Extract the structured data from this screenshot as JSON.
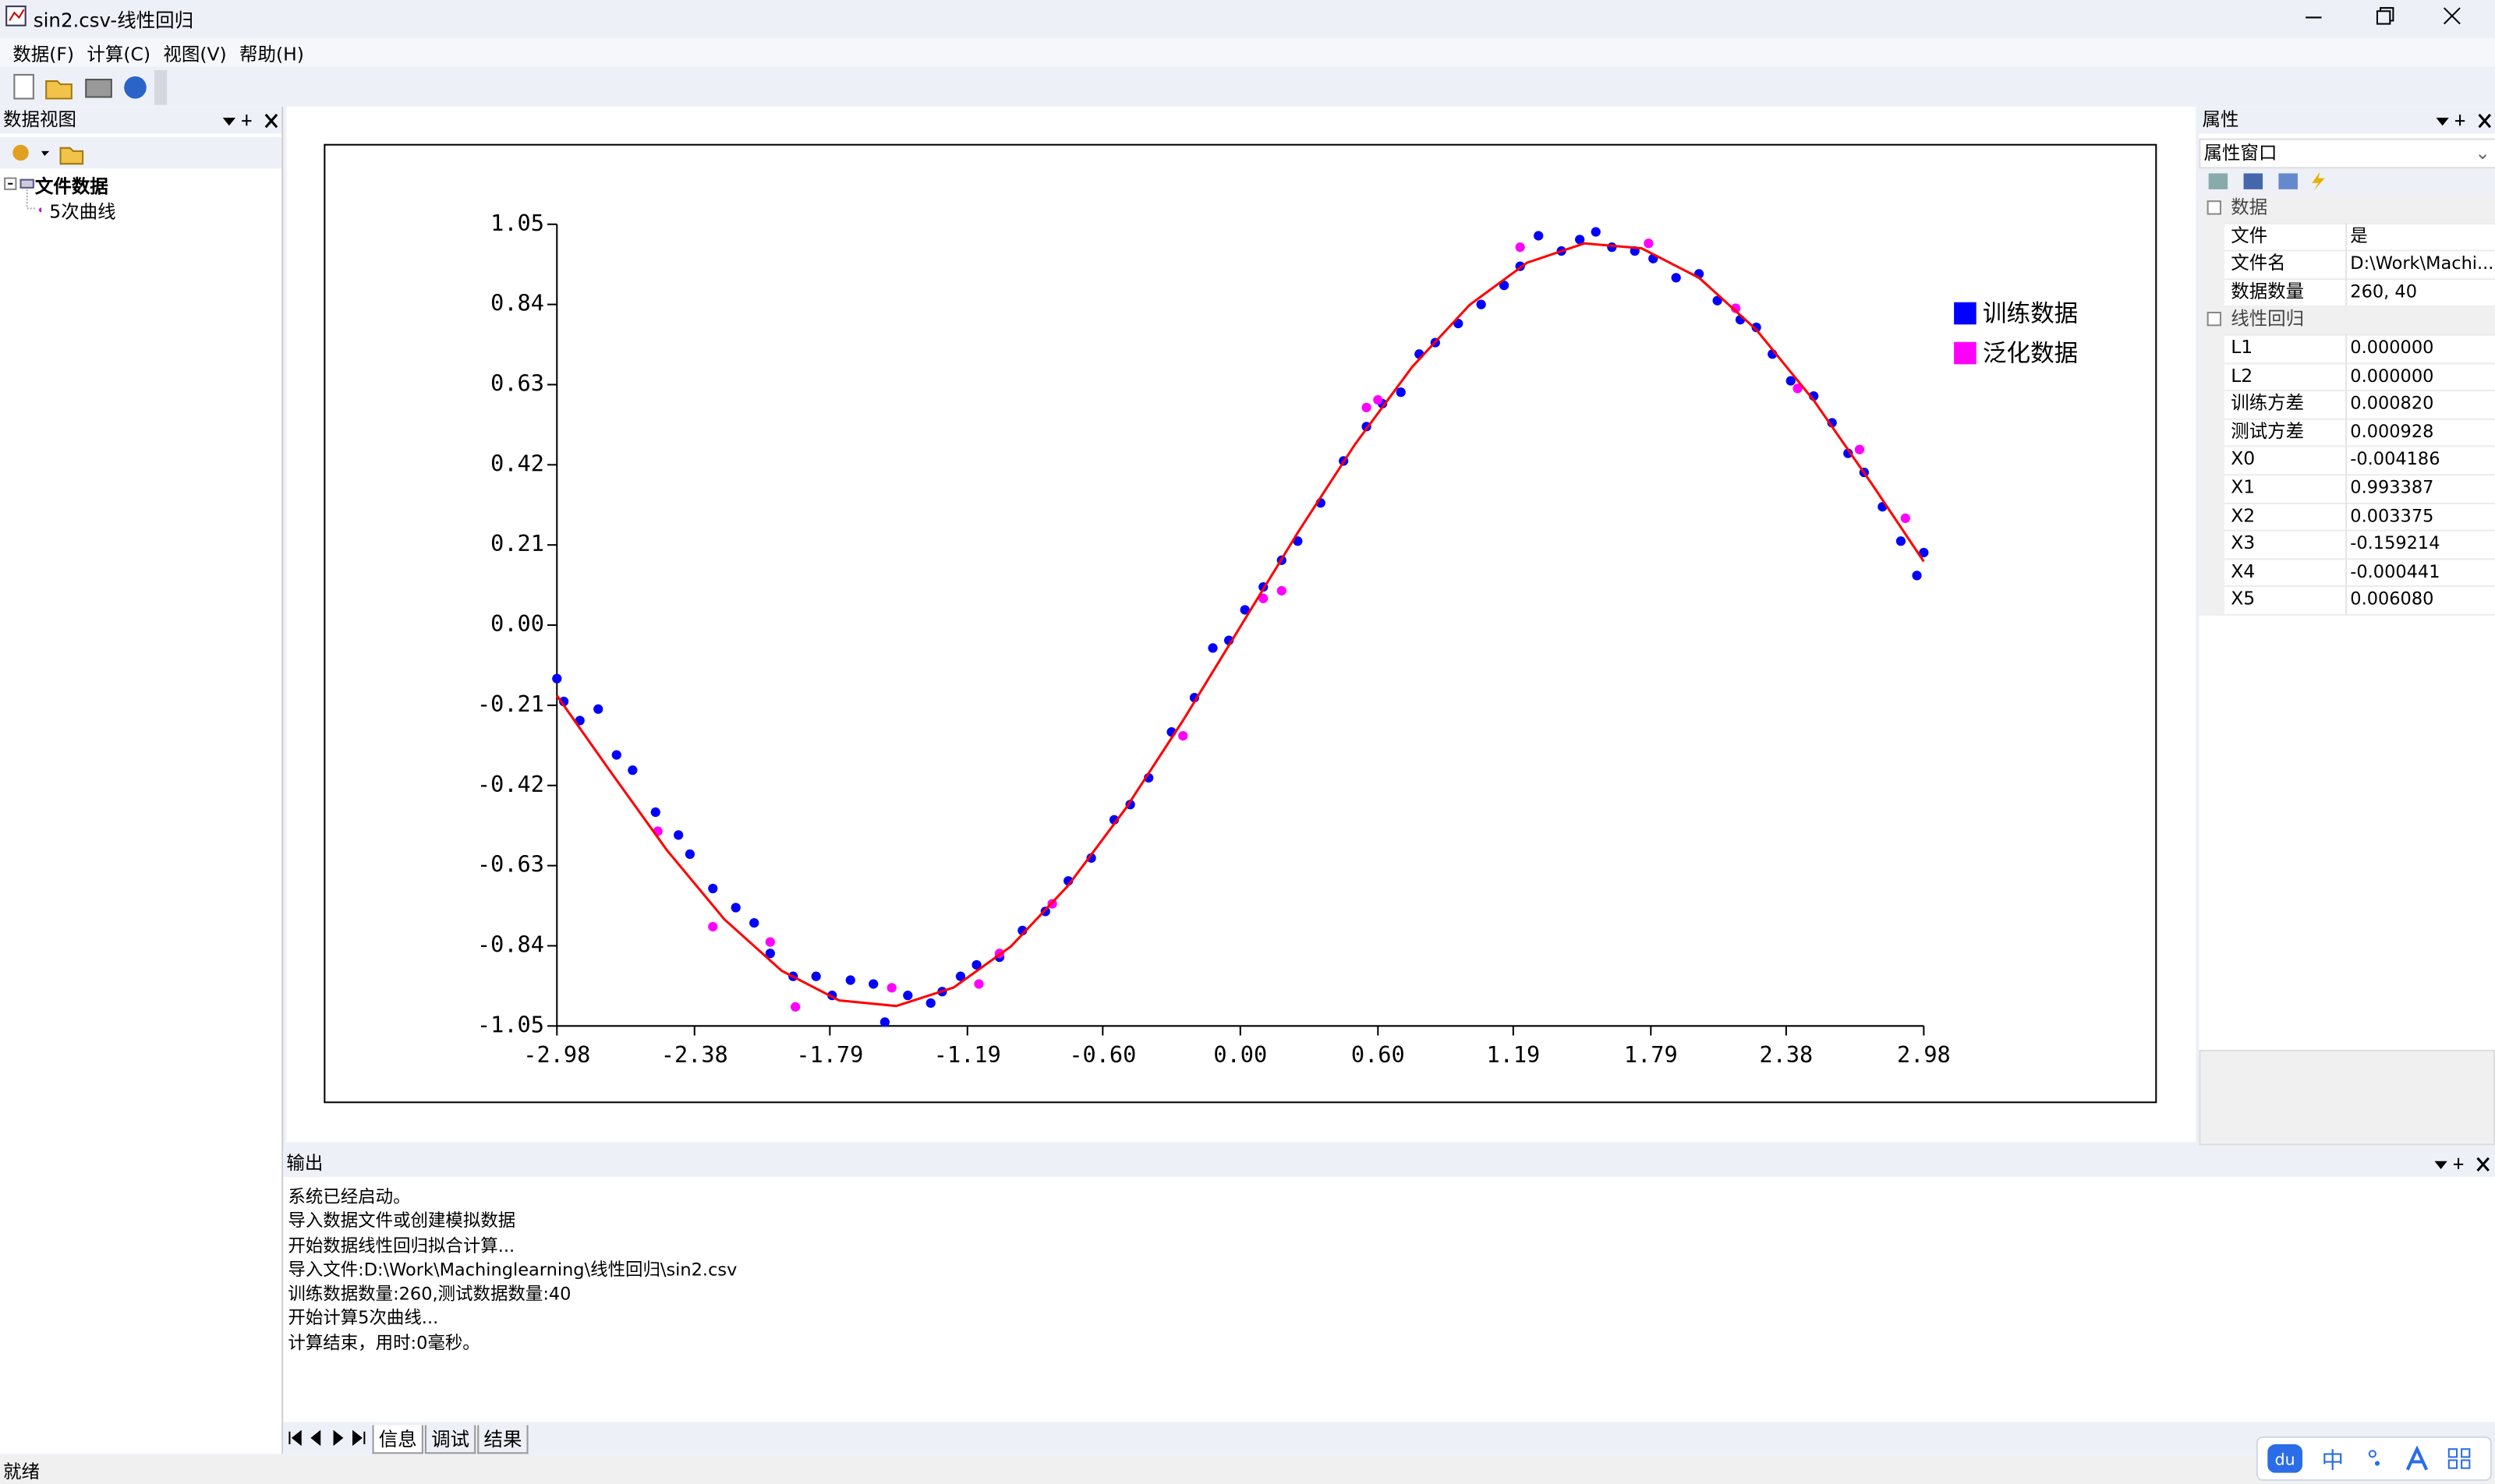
{
  "window": {
    "title": "sin2.csv-线性回归"
  },
  "menu": [
    "数据(F)",
    "计算(C)",
    "视图(V)",
    "帮助(H)"
  ],
  "data_view": {
    "header": "数据视图",
    "tree": {
      "root": "文件数据",
      "children": [
        "5次曲线"
      ]
    }
  },
  "properties": {
    "header": "属性",
    "selector": "属性窗口",
    "groups": [
      {
        "name": "数据",
        "rows": [
          [
            "文件",
            "是"
          ],
          [
            "文件名",
            "D:\\Work\\Machi..."
          ],
          [
            "数据数量",
            "260, 40"
          ]
        ]
      },
      {
        "name": "线性回归",
        "rows": [
          [
            "L1",
            "0.000000"
          ],
          [
            "L2",
            "0.000000"
          ],
          [
            "训练方差",
            "0.000820"
          ],
          [
            "测试方差",
            "0.000928"
          ],
          [
            "X0",
            "-0.004186"
          ],
          [
            "X1",
            "0.993387"
          ],
          [
            "X2",
            "0.003375"
          ],
          [
            "X3",
            "-0.159214"
          ],
          [
            "X4",
            "-0.000441"
          ],
          [
            "X5",
            "0.006080"
          ]
        ]
      }
    ]
  },
  "output": {
    "header": "输出",
    "lines": [
      "系统已经启动。",
      "导入数据文件或创建模拟数据",
      "开始数据线性回归拟合计算...",
      "导入文件:D:\\Work\\Machinglearning\\线性回归\\sin2.csv",
      "训练数据数量:260,测试数据数量:40",
      "开始计算5次曲线...",
      "计算结束，用时:0毫秒。"
    ],
    "tabs": [
      "信息",
      "调试",
      "结果"
    ]
  },
  "status": "就绪",
  "ime": "中",
  "chart_data": {
    "type": "scatter",
    "legend": "upper right",
    "xlim": [
      -2.98,
      2.98
    ],
    "xticks": [
      -2.98,
      -2.38,
      -1.79,
      -1.19,
      {
        "value": -0.6,
        "label": "-0.60"
      },
      {
        "value": 0,
        "label": "0.00"
      },
      {
        "value": 0.6,
        "label": "0.60"
      },
      1.19,
      1.79,
      2.38,
      2.98
    ],
    "ylim": [
      -1.05,
      1.05
    ],
    "yticks": [
      -1.05,
      -0.84,
      -0.63,
      -0.42,
      -0.21,
      {
        "value": 0,
        "label": "0.00"
      },
      0.21,
      0.42,
      0.63,
      0.84,
      1.05
    ],
    "series": [
      {
        "name": "训练数据",
        "color": "#0000ff",
        "x": [
          -2.98,
          -2.95,
          -2.88,
          -2.8,
          -2.72,
          -2.65,
          -2.55,
          -2.45,
          -2.4,
          -2.3,
          -2.2,
          -2.12,
          -2.05,
          -1.95,
          -1.85,
          -1.78,
          -1.7,
          -1.6,
          -1.55,
          -1.45,
          -1.35,
          -1.3,
          -1.22,
          -1.15,
          -1.05,
          -0.95,
          -0.85,
          -0.75,
          -0.65,
          -0.55,
          -0.48,
          -0.4,
          -0.3,
          -0.2,
          -0.12,
          -0.05,
          0.02,
          0.1,
          0.18,
          0.25,
          0.35,
          0.45,
          0.55,
          0.62,
          0.7,
          0.78,
          0.85,
          0.95,
          1.05,
          1.15,
          1.22,
          1.3,
          1.4,
          1.48,
          1.55,
          1.62,
          1.72,
          1.8,
          1.9,
          2.0,
          2.08,
          2.18,
          2.25,
          2.32,
          2.4,
          2.5,
          2.58,
          2.65,
          2.72,
          2.8,
          2.88,
          2.95,
          2.98
        ],
        "values": [
          -0.14,
          -0.2,
          -0.25,
          -0.22,
          -0.34,
          -0.38,
          -0.49,
          -0.55,
          -0.6,
          -0.69,
          -0.74,
          -0.78,
          -0.86,
          -0.92,
          -0.92,
          -0.97,
          -0.93,
          -0.94,
          -1.04,
          -0.97,
          -0.99,
          -0.96,
          -0.92,
          -0.89,
          -0.87,
          -0.8,
          -0.75,
          -0.67,
          -0.61,
          -0.51,
          -0.47,
          -0.4,
          -0.28,
          -0.19,
          -0.06,
          -0.04,
          0.04,
          0.1,
          0.17,
          0.22,
          0.32,
          0.43,
          0.52,
          0.58,
          0.61,
          0.71,
          0.74,
          0.79,
          0.84,
          0.89,
          0.94,
          1.02,
          0.98,
          1.01,
          1.03,
          0.99,
          0.98,
          0.96,
          0.91,
          0.92,
          0.85,
          0.8,
          0.78,
          0.71,
          0.64,
          0.6,
          0.53,
          0.45,
          0.4,
          0.31,
          0.22,
          0.13,
          0.19
        ]
      },
      {
        "name": "泛化数据",
        "color": "#ff00ff",
        "x": [
          -2.54,
          -2.3,
          -2.05,
          -1.94,
          -1.52,
          -1.14,
          -1.05,
          -0.82,
          -0.25,
          0.1,
          0.18,
          0.55,
          0.6,
          1.22,
          1.78,
          2.16,
          2.43,
          2.7,
          2.9
        ],
        "values": [
          -0.54,
          -0.79,
          -0.83,
          -1.0,
          -0.95,
          -0.94,
          -0.86,
          -0.73,
          -0.29,
          0.07,
          0.09,
          0.57,
          0.59,
          0.99,
          1.0,
          0.83,
          0.62,
          0.46,
          0.28
        ]
      },
      {
        "type": "line",
        "color": "#ff0000",
        "x": [
          -2.98,
          -2.75,
          -2.5,
          -2.25,
          -2.0,
          -1.75,
          -1.5,
          -1.25,
          -1.0,
          -0.75,
          -0.5,
          -0.25,
          0,
          0.25,
          0.5,
          0.75,
          1.0,
          1.25,
          1.5,
          1.75,
          2.0,
          2.25,
          2.5,
          2.75,
          2.98
        ],
        "values": [
          -0.1848,
          -0.3808,
          -0.5898,
          -0.7706,
          -0.9054,
          -0.9829,
          -0.9977,
          -0.9493,
          -0.8415,
          -0.6817,
          -0.4804,
          -0.2498,
          -0.0042,
          0.2419,
          0.4736,
          0.6769,
          0.839,
          0.9493,
          1.0,
          0.9869,
          0.91,
          0.7738,
          0.589,
          0.373,
          0.1668
        ]
      }
    ]
  }
}
